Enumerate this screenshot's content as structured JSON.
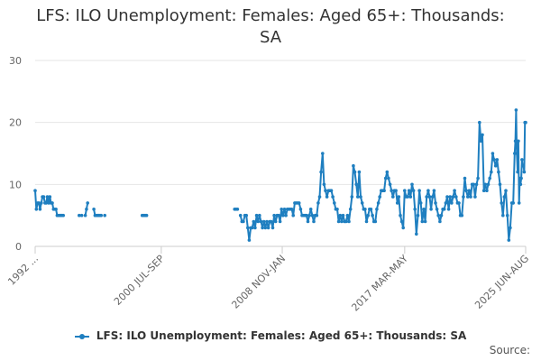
{
  "chart_data": {
    "type": "line",
    "title": "LFS: ILO Unemployment: Females: Aged 65+: Thousands: SA",
    "title_lines": [
      "LFS: ILO Unemployment: Females: Aged 65+: Thousands:",
      "SA"
    ],
    "xlabel": "",
    "ylabel": "",
    "ylim": [
      0,
      30
    ],
    "yticks": [
      0,
      10,
      20,
      30
    ],
    "xlim": [
      1992.0,
      2025.45
    ],
    "xticks": [
      {
        "x": 1992.0,
        "label": "1992 ..."
      },
      {
        "x": 2000.6,
        "label": "2000 JUL-SEP"
      },
      {
        "x": 2008.85,
        "label": "2008 NOV-JAN"
      },
      {
        "x": 2017.2,
        "label": "2017 MAR-MAY"
      },
      {
        "x": 2025.45,
        "label": "2025 JUN-AUG"
      }
    ],
    "grid": true,
    "legend_position": "bottom",
    "source_label": "Source:",
    "series_color": "#1f7fc0",
    "series": [
      {
        "name": "LFS: ILO Unemployment: Females: Aged 65+: Thousands: SA",
        "segments": [
          [
            [
              1992.0,
              9
            ],
            [
              1992.08,
              6
            ],
            [
              1992.17,
              7
            ],
            [
              1992.25,
              7
            ],
            [
              1992.33,
              6
            ],
            [
              1992.42,
              7
            ],
            [
              1992.5,
              8
            ],
            [
              1992.58,
              8
            ],
            [
              1992.67,
              7
            ],
            [
              1992.75,
              7
            ],
            [
              1992.83,
              8
            ],
            [
              1992.92,
              7
            ],
            [
              1993.0,
              8
            ],
            [
              1993.08,
              7
            ],
            [
              1993.17,
              7
            ],
            [
              1993.25,
              6
            ],
            [
              1993.33,
              6
            ],
            [
              1993.42,
              6
            ],
            [
              1993.5,
              5
            ],
            [
              1993.58,
              5
            ],
            [
              1993.67,
              5
            ],
            [
              1993.75,
              5
            ],
            [
              1993.83,
              5
            ],
            [
              1993.92,
              5
            ]
          ],
          [
            [
              1995.0,
              5
            ],
            [
              1995.17,
              5
            ]
          ],
          [
            [
              1995.42,
              5
            ],
            [
              1995.5,
              6
            ],
            [
              1995.58,
              7
            ]
          ],
          [
            [
              1996.0,
              6
            ],
            [
              1996.08,
              5
            ],
            [
              1996.17,
              5
            ],
            [
              1996.25,
              5
            ],
            [
              1996.33,
              5
            ],
            [
              1996.42,
              5
            ],
            [
              1996.5,
              5
            ]
          ],
          [
            [
              1996.75,
              5
            ]
          ],
          [
            [
              1999.3,
              5
            ],
            [
              1999.4,
              5
            ],
            [
              1999.5,
              5
            ],
            [
              1999.6,
              5
            ]
          ],
          [
            [
              2005.6,
              6
            ],
            [
              2005.7,
              6
            ],
            [
              2005.8,
              6
            ]
          ],
          [
            [
              2006.0,
              5
            ],
            [
              2006.1,
              4
            ],
            [
              2006.2,
              4
            ],
            [
              2006.3,
              5
            ],
            [
              2006.4,
              5
            ],
            [
              2006.5,
              3
            ],
            [
              2006.6,
              1
            ],
            [
              2006.7,
              3
            ],
            [
              2006.8,
              3
            ],
            [
              2006.9,
              4
            ],
            [
              2007.0,
              3
            ],
            [
              2007.1,
              5
            ],
            [
              2007.2,
              4
            ],
            [
              2007.3,
              5
            ],
            [
              2007.4,
              4
            ],
            [
              2007.5,
              3
            ],
            [
              2007.6,
              4
            ],
            [
              2007.7,
              3
            ],
            [
              2007.8,
              4
            ],
            [
              2007.9,
              3
            ],
            [
              2008.0,
              4
            ],
            [
              2008.1,
              4
            ],
            [
              2008.2,
              3
            ],
            [
              2008.3,
              5
            ],
            [
              2008.4,
              4
            ],
            [
              2008.5,
              5
            ],
            [
              2008.6,
              5
            ],
            [
              2008.7,
              4
            ],
            [
              2008.8,
              6
            ],
            [
              2008.9,
              5
            ],
            [
              2009.0,
              6
            ],
            [
              2009.1,
              5
            ],
            [
              2009.2,
              6
            ],
            [
              2009.3,
              6
            ],
            [
              2009.4,
              6
            ],
            [
              2009.5,
              6
            ],
            [
              2009.6,
              5
            ],
            [
              2009.7,
              7
            ],
            [
              2009.8,
              7
            ],
            [
              2009.9,
              7
            ],
            [
              2010.0,
              7
            ],
            [
              2010.1,
              6
            ],
            [
              2010.2,
              5
            ],
            [
              2010.3,
              5
            ],
            [
              2010.4,
              5
            ],
            [
              2010.5,
              5
            ],
            [
              2010.6,
              4
            ],
            [
              2010.7,
              5
            ],
            [
              2010.8,
              6
            ],
            [
              2010.9,
              5
            ],
            [
              2011.0,
              4
            ],
            [
              2011.1,
              5
            ],
            [
              2011.2,
              5
            ],
            [
              2011.3,
              7
            ],
            [
              2011.4,
              8
            ],
            [
              2011.5,
              12
            ],
            [
              2011.6,
              15
            ],
            [
              2011.7,
              10
            ],
            [
              2011.8,
              9
            ],
            [
              2011.9,
              8
            ],
            [
              2012.0,
              9
            ],
            [
              2012.1,
              9
            ],
            [
              2012.2,
              9
            ],
            [
              2012.3,
              8
            ],
            [
              2012.4,
              7
            ],
            [
              2012.5,
              6
            ],
            [
              2012.6,
              6
            ],
            [
              2012.7,
              4
            ],
            [
              2012.8,
              5
            ],
            [
              2012.9,
              4
            ],
            [
              2013.0,
              5
            ],
            [
              2013.1,
              4
            ],
            [
              2013.2,
              4
            ],
            [
              2013.3,
              5
            ],
            [
              2013.4,
              4
            ],
            [
              2013.5,
              6
            ],
            [
              2013.6,
              8
            ],
            [
              2013.7,
              13
            ],
            [
              2013.8,
              12
            ],
            [
              2013.9,
              10
            ],
            [
              2014.0,
              8
            ],
            [
              2014.1,
              12
            ],
            [
              2014.2,
              8
            ],
            [
              2014.3,
              7
            ],
            [
              2014.4,
              6
            ],
            [
              2014.5,
              6
            ],
            [
              2014.6,
              4
            ],
            [
              2014.7,
              5
            ],
            [
              2014.8,
              6
            ],
            [
              2014.9,
              6
            ],
            [
              2015.0,
              5
            ],
            [
              2015.1,
              4
            ],
            [
              2015.2,
              4
            ],
            [
              2015.3,
              6
            ],
            [
              2015.4,
              7
            ],
            [
              2015.5,
              8
            ],
            [
              2015.6,
              9
            ],
            [
              2015.7,
              9
            ],
            [
              2015.8,
              9
            ],
            [
              2015.9,
              11
            ],
            [
              2016.0,
              12
            ],
            [
              2016.1,
              11
            ],
            [
              2016.2,
              10
            ],
            [
              2016.3,
              9
            ],
            [
              2016.4,
              8
            ],
            [
              2016.5,
              9
            ],
            [
              2016.6,
              9
            ],
            [
              2016.7,
              7
            ],
            [
              2016.8,
              8
            ],
            [
              2016.9,
              5
            ],
            [
              2017.0,
              4
            ],
            [
              2017.1,
              3
            ],
            [
              2017.2,
              9
            ],
            [
              2017.3,
              8
            ],
            [
              2017.4,
              8
            ],
            [
              2017.5,
              9
            ],
            [
              2017.6,
              8
            ],
            [
              2017.7,
              10
            ],
            [
              2017.8,
              9
            ],
            [
              2017.9,
              6
            ],
            [
              2018.0,
              2
            ],
            [
              2018.1,
              5
            ],
            [
              2018.2,
              9
            ],
            [
              2018.3,
              7
            ],
            [
              2018.4,
              4
            ],
            [
              2018.5,
              6
            ],
            [
              2018.6,
              4
            ],
            [
              2018.7,
              8
            ],
            [
              2018.8,
              9
            ],
            [
              2018.9,
              8
            ],
            [
              2019.0,
              6
            ],
            [
              2019.1,
              8
            ],
            [
              2019.2,
              9
            ],
            [
              2019.3,
              7
            ],
            [
              2019.4,
              6
            ],
            [
              2019.5,
              5
            ],
            [
              2019.6,
              4
            ],
            [
              2019.7,
              5
            ],
            [
              2019.8,
              6
            ],
            [
              2019.9,
              6
            ],
            [
              2020.0,
              7
            ],
            [
              2020.1,
              8
            ],
            [
              2020.2,
              6
            ],
            [
              2020.3,
              8
            ],
            [
              2020.4,
              7
            ],
            [
              2020.5,
              8
            ],
            [
              2020.6,
              9
            ],
            [
              2020.7,
              8
            ],
            [
              2020.8,
              7
            ],
            [
              2020.9,
              7
            ],
            [
              2021.0,
              5
            ],
            [
              2021.1,
              5
            ],
            [
              2021.2,
              8
            ],
            [
              2021.3,
              11
            ],
            [
              2021.4,
              9
            ],
            [
              2021.5,
              8
            ],
            [
              2021.6,
              9
            ],
            [
              2021.7,
              8
            ],
            [
              2021.8,
              10
            ],
            [
              2021.9,
              10
            ],
            [
              2022.0,
              8
            ],
            [
              2022.1,
              10
            ],
            [
              2022.2,
              11
            ],
            [
              2022.3,
              20
            ],
            [
              2022.4,
              17
            ],
            [
              2022.5,
              18
            ],
            [
              2022.6,
              9
            ],
            [
              2022.7,
              10
            ],
            [
              2022.8,
              9
            ],
            [
              2022.9,
              10
            ],
            [
              2023.0,
              11
            ],
            [
              2023.1,
              12
            ],
            [
              2023.2,
              15
            ],
            [
              2023.3,
              14
            ],
            [
              2023.4,
              13
            ],
            [
              2023.5,
              14
            ],
            [
              2023.6,
              12
            ],
            [
              2023.7,
              10
            ],
            [
              2023.8,
              7
            ],
            [
              2023.9,
              5
            ],
            [
              2024.0,
              8
            ],
            [
              2024.1,
              9
            ],
            [
              2024.2,
              5
            ],
            [
              2024.3,
              1
            ],
            [
              2024.4,
              3
            ],
            [
              2024.5,
              7
            ],
            [
              2024.6,
              7
            ],
            [
              2024.7,
              15
            ],
            [
              2024.75,
              17
            ],
            [
              2024.8,
              22
            ],
            [
              2024.85,
              15
            ],
            [
              2024.9,
              12
            ],
            [
              2024.95,
              17
            ],
            [
              2025.0,
              7
            ],
            [
              2025.05,
              11
            ],
            [
              2025.1,
              10
            ],
            [
              2025.15,
              11
            ],
            [
              2025.2,
              14
            ],
            [
              2025.25,
              13
            ],
            [
              2025.3,
              13
            ],
            [
              2025.35,
              12
            ],
            [
              2025.4,
              20
            ],
            [
              2025.45,
              20
            ]
          ]
        ]
      }
    ]
  }
}
